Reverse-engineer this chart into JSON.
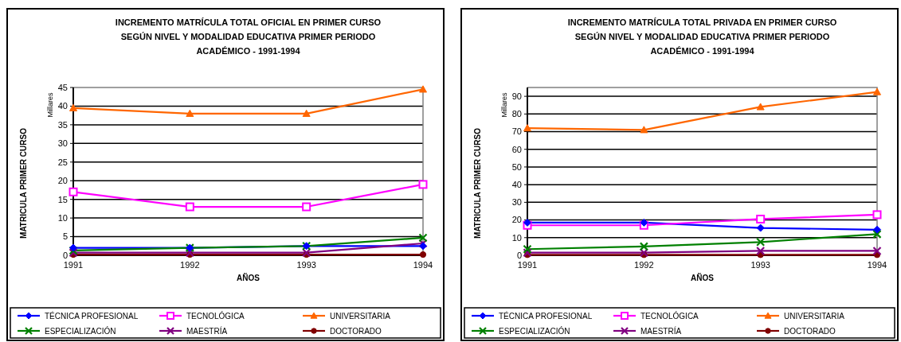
{
  "chart_data": [
    {
      "type": "line",
      "title": "INCREMENTO MATRÍCULA TOTAL OFICIAL  EN PRIMER CURSO\nSEGÚN NIVEL Y MODALIDAD EDUCATIVA PRIMER PERIODO\nACADÉMICO - 1991-1994",
      "xlabel": "AÑOS",
      "ylabel": "MATRICULA PRIMER CURSO",
      "annotations": [
        "Millares"
      ],
      "categories": [
        "1991",
        "1992",
        "1993",
        "1994"
      ],
      "series": [
        {
          "name": "TÉCNICA PROFESIONAL",
          "color": "#0000ff",
          "marker": "diamond",
          "values": [
            2,
            2,
            2.5,
            2.5
          ]
        },
        {
          "name": "TECNOLÓGICA",
          "color": "#ff00ff",
          "marker": "square",
          "values": [
            17,
            13,
            13,
            19
          ]
        },
        {
          "name": "UNIVERSITARIA",
          "color": "#ff6600",
          "marker": "triangle",
          "values": [
            39.5,
            38,
            38,
            44.5
          ]
        },
        {
          "name": "ESPECIALIZACIÓN",
          "color": "#008000",
          "marker": "cross",
          "values": [
            1.3,
            2,
            2.5,
            4.7
          ]
        },
        {
          "name": "MAESTRÍA",
          "color": "#800080",
          "marker": "cross",
          "values": [
            0.7,
            0.7,
            0.7,
            3.2
          ]
        },
        {
          "name": "DOCTORADO",
          "color": "#800000",
          "marker": "circle",
          "values": [
            0.2,
            0.2,
            0.2,
            0.2
          ]
        }
      ],
      "ylim": [
        0,
        45
      ],
      "yticks": [
        0,
        5,
        10,
        15,
        20,
        25,
        30,
        35,
        40,
        45
      ],
      "grid": "y",
      "legend": "bottom"
    },
    {
      "type": "line",
      "title": "INCREMENTO MATRÍCULA TOTAL PRIVADA  EN PRIMER CURSO\nSEGÚN NIVEL Y MODALIDAD EDUCATIVA  PRIMER PERIODO\nACADÉMICO - 1991-1994",
      "xlabel": "AÑOS",
      "ylabel": "MATRICULA PRIMER CURSO",
      "annotations": [
        "Millares"
      ],
      "categories": [
        "1991",
        "1992",
        "1993",
        "1994"
      ],
      "series": [
        {
          "name": "TÉCNICA PROFESIONAL",
          "color": "#0000ff",
          "marker": "diamond",
          "values": [
            18.5,
            18.5,
            15.5,
            14.5
          ]
        },
        {
          "name": "TECNOLÓGICA",
          "color": "#ff00ff",
          "marker": "square",
          "values": [
            17,
            17,
            20.5,
            23
          ]
        },
        {
          "name": "UNIVERSITARIA",
          "color": "#ff6600",
          "marker": "triangle",
          "values": [
            72,
            71,
            84,
            92.5
          ]
        },
        {
          "name": "ESPECIALIZACIÓN",
          "color": "#008000",
          "marker": "cross",
          "values": [
            3.5,
            5,
            7.5,
            12
          ]
        },
        {
          "name": "MAESTRÍA",
          "color": "#800080",
          "marker": "cross",
          "values": [
            1.5,
            1.5,
            2.5,
            2.5
          ]
        },
        {
          "name": "DOCTORADO",
          "color": "#800000",
          "marker": "circle",
          "values": [
            0.3,
            0.3,
            0.3,
            0.3
          ]
        }
      ],
      "ylim": [
        0,
        95
      ],
      "yticks": [
        0,
        10,
        20,
        30,
        40,
        50,
        60,
        70,
        80,
        90
      ],
      "grid": "y",
      "legend": "bottom"
    }
  ]
}
